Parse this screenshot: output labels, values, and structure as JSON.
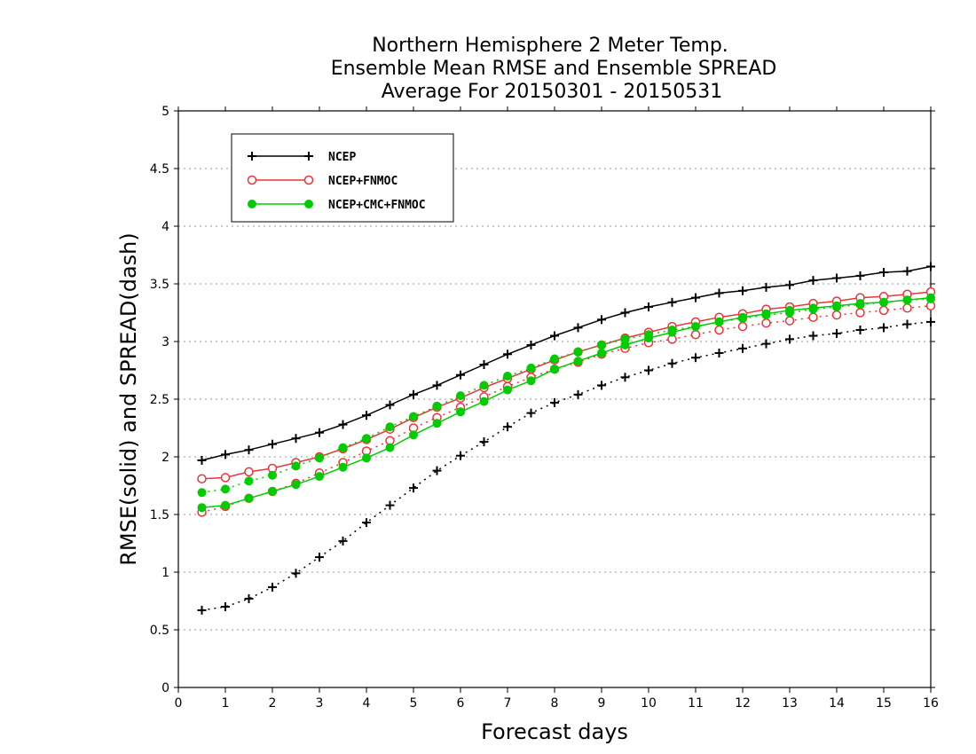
{
  "chart_data": {
    "type": "line",
    "title": [
      "Northern Hemisphere 2 Meter Temp.",
      "Ensemble Mean RMSE and Ensemble SPREAD",
      "Average For 20150301 - 20150531"
    ],
    "xlabel": "Forecast days",
    "ylabel": "RMSE(solid)  and  SPREAD(dash)",
    "xlim": [
      0,
      16
    ],
    "ylim": [
      0,
      5
    ],
    "xticks": [
      "0",
      "1",
      "2",
      "3",
      "4",
      "5",
      "6",
      "7",
      "8",
      "9",
      "10",
      "11",
      "12",
      "13",
      "14",
      "15",
      "16"
    ],
    "yticks": [
      "0",
      "0.5",
      "1",
      "1.5",
      "2",
      "2.5",
      "3",
      "3.5",
      "4",
      "4.5",
      "5"
    ],
    "grid": "horizontal dotted",
    "legend_position": "top-left",
    "x": [
      0.5,
      1,
      1.5,
      2,
      2.5,
      3,
      3.5,
      4,
      4.5,
      5,
      5.5,
      6,
      6.5,
      7,
      7.5,
      8,
      8.5,
      9,
      9.5,
      10,
      10.5,
      11,
      11.5,
      12,
      12.5,
      13,
      13.5,
      14,
      14.5,
      15,
      15.5,
      16
    ],
    "series": [
      {
        "name": "NCEP",
        "color": "#000000",
        "marker": "plus",
        "rmse": [
          1.97,
          2.02,
          2.06,
          2.11,
          2.16,
          2.21,
          2.28,
          2.36,
          2.45,
          2.54,
          2.62,
          2.71,
          2.8,
          2.89,
          2.97,
          3.05,
          3.12,
          3.19,
          3.25,
          3.3,
          3.34,
          3.38,
          3.42,
          3.44,
          3.47,
          3.49,
          3.53,
          3.55,
          3.57,
          3.6,
          3.61,
          3.65
        ],
        "spread": [
          0.67,
          0.7,
          0.77,
          0.87,
          0.99,
          1.13,
          1.27,
          1.43,
          1.58,
          1.73,
          1.88,
          2.01,
          2.13,
          2.26,
          2.38,
          2.47,
          2.54,
          2.62,
          2.69,
          2.75,
          2.81,
          2.86,
          2.9,
          2.94,
          2.98,
          3.02,
          3.05,
          3.07,
          3.1,
          3.12,
          3.15,
          3.17
        ]
      },
      {
        "name": "NCEP+FNMOC",
        "color": "#e8363a",
        "marker": "open-circle",
        "rmse": [
          1.81,
          1.82,
          1.87,
          1.9,
          1.95,
          2.0,
          2.07,
          2.15,
          2.24,
          2.34,
          2.43,
          2.51,
          2.6,
          2.68,
          2.76,
          2.84,
          2.91,
          2.97,
          3.03,
          3.08,
          3.13,
          3.17,
          3.21,
          3.24,
          3.28,
          3.3,
          3.33,
          3.35,
          3.38,
          3.39,
          3.41,
          3.43
        ],
        "spread": [
          1.52,
          1.57,
          1.64,
          1.7,
          1.77,
          1.86,
          1.95,
          2.05,
          2.14,
          2.25,
          2.34,
          2.43,
          2.52,
          2.61,
          2.69,
          2.76,
          2.82,
          2.89,
          2.94,
          2.99,
          3.02,
          3.06,
          3.1,
          3.13,
          3.16,
          3.18,
          3.21,
          3.23,
          3.25,
          3.27,
          3.29,
          3.31
        ]
      },
      {
        "name": "NCEP+CMC+FNMOC",
        "color": "#00cc00",
        "marker": "filled-circle",
        "rmse": [
          1.56,
          1.58,
          1.64,
          1.7,
          1.76,
          1.83,
          1.91,
          1.99,
          2.08,
          2.19,
          2.29,
          2.39,
          2.48,
          2.58,
          2.66,
          2.76,
          2.83,
          2.9,
          2.97,
          3.03,
          3.08,
          3.13,
          3.17,
          3.21,
          3.24,
          3.27,
          3.29,
          3.31,
          3.33,
          3.34,
          3.36,
          3.38
        ],
        "spread": [
          1.69,
          1.72,
          1.79,
          1.84,
          1.92,
          1.99,
          2.08,
          2.16,
          2.26,
          2.35,
          2.44,
          2.53,
          2.62,
          2.7,
          2.77,
          2.85,
          2.91,
          2.97,
          3.02,
          3.06,
          3.1,
          3.13,
          3.17,
          3.2,
          3.23,
          3.25,
          3.28,
          3.3,
          3.32,
          3.34,
          3.36,
          3.37
        ]
      }
    ]
  }
}
